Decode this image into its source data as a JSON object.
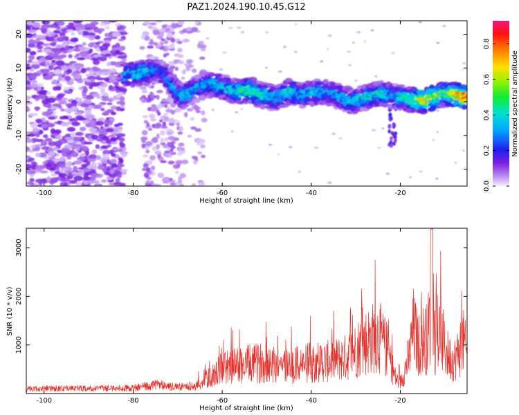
{
  "figure": {
    "title": "PAZ1.2024.190.10.45.G12"
  },
  "colors": {
    "snr_line": "#e8302a",
    "axis": "#000000"
  },
  "chart_data": [
    {
      "type": "heatmap",
      "xlabel": "Height of straight line (km)",
      "ylabel": "Frequency (Hz)",
      "xlim": [
        -104,
        -5
      ],
      "ylim": [
        -25,
        24
      ],
      "xticks": [
        -100,
        -80,
        -60,
        -40,
        -20
      ],
      "yticks": [
        20,
        10,
        0,
        -10,
        -20
      ],
      "colorbar": {
        "label": "Normalized spectral amplitude",
        "ticks": [
          0.0,
          0.2,
          0.4,
          0.6,
          0.8
        ],
        "range": [
          0,
          0.93
        ]
      },
      "ridge": [
        {
          "x": -82,
          "y": 8,
          "amp": 0.4
        },
        {
          "x": -78,
          "y": 8.5,
          "amp": 0.45
        },
        {
          "x": -74,
          "y": 9.5,
          "amp": 0.25
        },
        {
          "x": -69,
          "y": 1.5,
          "amp": 0.4
        },
        {
          "x": -64,
          "y": 5,
          "amp": 0.35
        },
        {
          "x": -61,
          "y": 5,
          "amp": 0.4
        },
        {
          "x": -57,
          "y": 3,
          "amp": 0.45
        },
        {
          "x": -54,
          "y": 3.5,
          "amp": 0.55
        },
        {
          "x": -51,
          "y": 2,
          "amp": 0.45
        },
        {
          "x": -48,
          "y": 1,
          "amp": 0.4
        },
        {
          "x": -45,
          "y": 3,
          "amp": 0.45
        },
        {
          "x": -42,
          "y": 2,
          "amp": 0.4
        },
        {
          "x": -38,
          "y": 3,
          "amp": 0.4
        },
        {
          "x": -35,
          "y": 2.5,
          "amp": 0.35
        },
        {
          "x": -31,
          "y": 0,
          "amp": 0.4
        },
        {
          "x": -27,
          "y": 1.5,
          "amp": 0.45
        },
        {
          "x": -24,
          "y": 2.5,
          "amp": 0.45
        },
        {
          "x": -21,
          "y": 1.5,
          "amp": 0.35
        },
        {
          "x": -17,
          "y": 0.5,
          "amp": 0.55
        },
        {
          "x": -14,
          "y": 0.5,
          "amp": 0.8
        },
        {
          "x": -10,
          "y": 2.5,
          "amp": 0.55
        },
        {
          "x": -6,
          "y": 1.5,
          "amp": 0.9
        }
      ]
    },
    {
      "type": "line",
      "xlabel": "Height of straight line (km)",
      "ylabel": "SNR (10 * v/v)",
      "xlim": [
        -104,
        -5
      ],
      "ylim": [
        0,
        3400
      ],
      "xticks": [
        -100,
        -80,
        -60,
        -40,
        -20
      ],
      "yticks": [
        1000,
        2000,
        3000
      ],
      "envelope": {
        "x": [
          -104,
          -80,
          -75,
          -70,
          -66,
          -62,
          -60,
          -58,
          -55,
          -50,
          -45,
          -40,
          -35,
          -32,
          -30,
          -28,
          -25,
          -23,
          -21,
          -20,
          -18,
          -17,
          -16,
          -15,
          -14,
          -13,
          -12,
          -11,
          -10,
          -9,
          -8,
          -7,
          -6,
          -5
        ],
        "y": [
          120,
          140,
          220,
          160,
          200,
          500,
          700,
          750,
          800,
          850,
          750,
          850,
          900,
          1000,
          1200,
          1400,
          1600,
          1200,
          400,
          300,
          1000,
          1800,
          1300,
          1500,
          1500,
          2300,
          1300,
          1700,
          1200,
          1000,
          900,
          1100,
          1500,
          1000
        ]
      }
    }
  ]
}
